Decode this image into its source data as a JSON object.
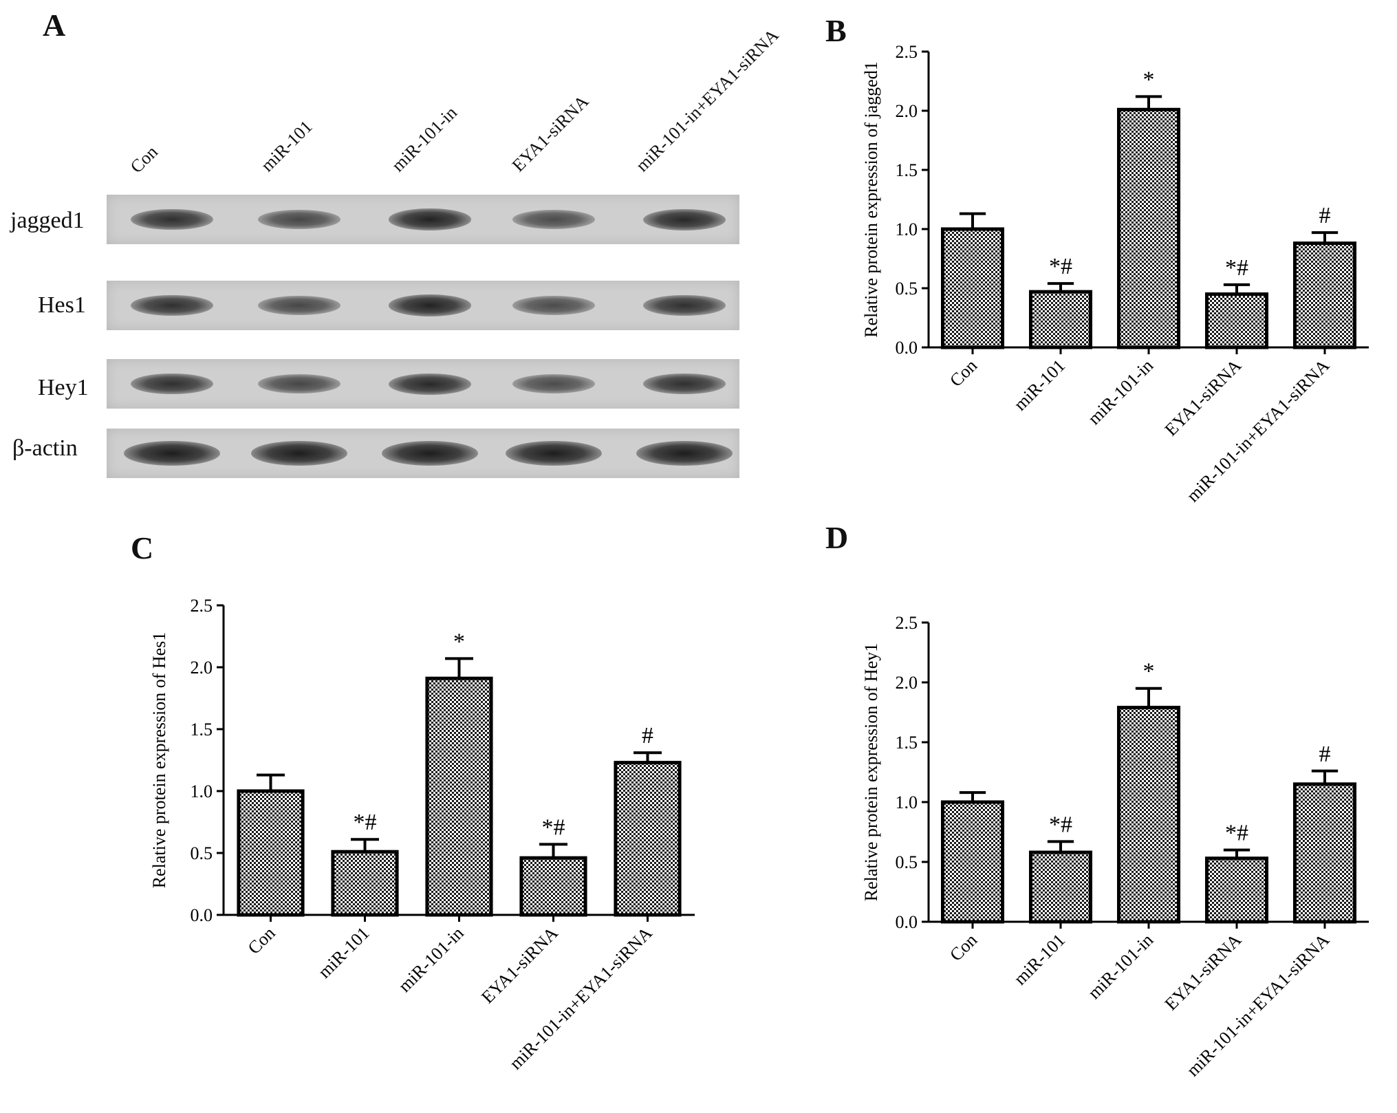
{
  "panel_labels": [
    "A",
    "B",
    "C",
    "D"
  ],
  "blot": {
    "lane_labels": [
      "Con",
      "miR-101",
      "miR-101-in",
      "EYA1-siRNA",
      "miR-101-in+EYA1-siRNA"
    ],
    "rows": [
      {
        "label": "jagged1",
        "intensity": [
          0.85,
          0.65,
          0.95,
          0.6,
          0.9
        ]
      },
      {
        "label": "Hes1",
        "intensity": [
          0.85,
          0.65,
          0.95,
          0.6,
          0.85
        ]
      },
      {
        "label": "Hey1",
        "intensity": [
          0.85,
          0.65,
          0.9,
          0.6,
          0.85
        ]
      },
      {
        "label": "β-actin",
        "intensity": [
          1.0,
          1.0,
          1.0,
          1.0,
          1.0
        ]
      }
    ]
  },
  "chart_data": [
    {
      "panel": "B",
      "type": "bar",
      "categories": [
        "Con",
        "miR-101",
        "miR-101-in",
        "EYA1-siRNA",
        "miR-101-in+EYA1-siRNA"
      ],
      "values": [
        1.0,
        0.47,
        2.01,
        0.45,
        0.88
      ],
      "errors": [
        0.13,
        0.07,
        0.11,
        0.08,
        0.09
      ],
      "annotations": [
        "",
        "*#",
        "*",
        "*#",
        "#"
      ],
      "title": "",
      "xlabel": "",
      "ylabel": "Relative protein expression of  jagged1",
      "ylim": [
        0,
        2.5
      ],
      "yticks": [
        "0.0",
        "0.5",
        "1.0",
        "1.5",
        "2.0",
        "2.5"
      ]
    },
    {
      "panel": "C",
      "type": "bar",
      "categories": [
        "Con",
        "miR-101",
        "miR-101-in",
        "EYA1-siRNA",
        "miR-101-in+EYA1-siRNA"
      ],
      "values": [
        1.0,
        0.51,
        1.91,
        0.46,
        1.23
      ],
      "errors": [
        0.13,
        0.1,
        0.16,
        0.11,
        0.08
      ],
      "annotations": [
        "",
        "*#",
        "*",
        "*#",
        "#"
      ],
      "title": "",
      "xlabel": "",
      "ylabel": "Relative protein expression of Hes1",
      "ylim": [
        0,
        2.5
      ],
      "yticks": [
        "0.0",
        "0.5",
        "1.0",
        "1.5",
        "2.0",
        "2.5"
      ]
    },
    {
      "panel": "D",
      "type": "bar",
      "categories": [
        "Con",
        "miR-101",
        "miR-101-in",
        "EYA1-siRNA",
        "miR-101-in+EYA1-siRNA"
      ],
      "values": [
        1.0,
        0.58,
        1.79,
        0.53,
        1.15
      ],
      "errors": [
        0.08,
        0.09,
        0.16,
        0.07,
        0.11
      ],
      "annotations": [
        "",
        "*#",
        "*",
        "*#",
        "#"
      ],
      "title": "",
      "xlabel": "",
      "ylabel": "Relative protein expression of Hey1",
      "ylim": [
        0,
        2.5
      ],
      "yticks": [
        "0.0",
        "0.5",
        "1.0",
        "1.5",
        "2.0",
        "2.5"
      ]
    }
  ]
}
